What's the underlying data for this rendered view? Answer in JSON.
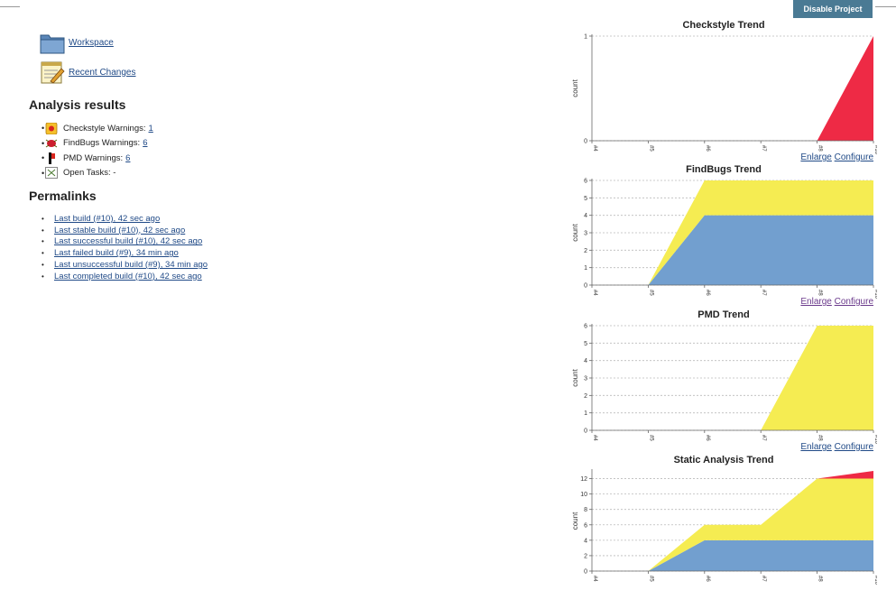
{
  "header": {
    "disable_label": "Disable Project"
  },
  "tasks": [
    {
      "label": "Workspace",
      "icon": "folder-icon"
    },
    {
      "label": "Recent Changes",
      "icon": "notepad-icon"
    }
  ],
  "analysis": {
    "heading": "Analysis results",
    "items": [
      {
        "label": "Checkstyle Warnings:",
        "value": "1",
        "icon": "checkstyle-icon"
      },
      {
        "label": "FindBugs Warnings:",
        "value": "6",
        "icon": "findbugs-icon"
      },
      {
        "label": "PMD Warnings:",
        "value": "6",
        "icon": "pmd-icon"
      },
      {
        "label": "Open Tasks: -",
        "value": "",
        "icon": "broken-image-icon"
      }
    ]
  },
  "permalinks": {
    "heading": "Permalinks",
    "items": [
      "Last build (#10), 42 sec ago",
      "Last stable build (#10), 42 sec ago",
      "Last successful build (#10), 42 sec ago",
      "Last failed build (#9), 34 min ago",
      "Last unsuccessful build (#9), 34 min ago",
      "Last completed build (#10), 42 sec ago"
    ]
  },
  "chart_links": {
    "enlarge": "Enlarge",
    "configure": "Configure"
  },
  "colors": {
    "red": "#ee2a45",
    "yellow": "#f5ec52",
    "blue": "#729fcf",
    "button": "#4a7a94",
    "link": "#204a87"
  },
  "chart_data": [
    {
      "type": "area",
      "title": "Checkstyle Trend",
      "ylabel": "count",
      "x": [
        "#4",
        "#5",
        "#6",
        "#7",
        "#8",
        "#10"
      ],
      "ylim": [
        0,
        1
      ],
      "yticks": [
        0,
        1
      ],
      "series": [
        {
          "values": [
            0,
            0,
            0,
            0,
            0,
            1
          ],
          "color": "#ee2a45"
        }
      ]
    },
    {
      "type": "area",
      "title": "FindBugs Trend",
      "ylabel": "count",
      "x": [
        "#4",
        "#5",
        "#6",
        "#7",
        "#8",
        "#10"
      ],
      "ylim": [
        0,
        6
      ],
      "yticks": [
        0,
        1,
        2,
        3,
        4,
        5,
        6
      ],
      "series": [
        {
          "values": [
            0,
            0,
            4,
            4,
            4,
            4
          ],
          "color": "#729fcf"
        },
        {
          "values": [
            0,
            0,
            2,
            2,
            2,
            2
          ],
          "color": "#f5ec52"
        }
      ]
    },
    {
      "type": "area",
      "title": "PMD Trend",
      "ylabel": "count",
      "x": [
        "#4",
        "#5",
        "#6",
        "#7",
        "#8",
        "#10"
      ],
      "ylim": [
        0,
        6
      ],
      "yticks": [
        0,
        1,
        2,
        3,
        4,
        5,
        6
      ],
      "series": [
        {
          "values": [
            0,
            0,
            0,
            0,
            6,
            6
          ],
          "color": "#f5ec52"
        }
      ]
    },
    {
      "type": "area",
      "title": "Static Analysis Trend",
      "ylabel": "count",
      "x": [
        "#4",
        "#5",
        "#6",
        "#7",
        "#8",
        "#10"
      ],
      "ylim": [
        0,
        13
      ],
      "yticks": [
        0,
        2,
        4,
        6,
        8,
        10,
        12
      ],
      "series": [
        {
          "values": [
            0,
            0,
            4,
            4,
            4,
            4
          ],
          "color": "#729fcf"
        },
        {
          "values": [
            0,
            0,
            2,
            2,
            8,
            8
          ],
          "color": "#f5ec52"
        },
        {
          "values": [
            0,
            0,
            0,
            0,
            0,
            1
          ],
          "color": "#ee2a45"
        }
      ]
    }
  ]
}
